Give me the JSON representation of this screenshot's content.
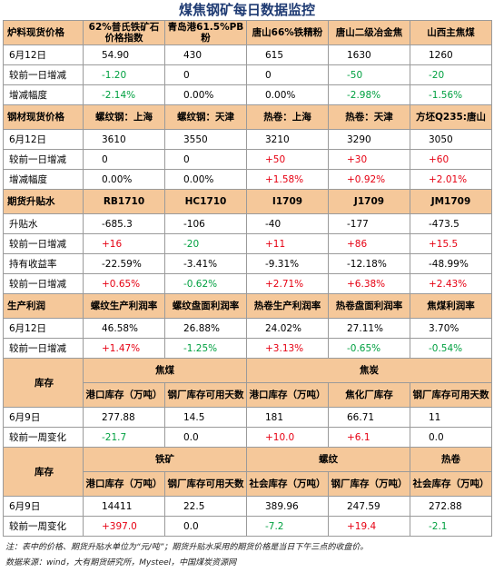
{
  "title": "煤焦钢矿每日数据监控",
  "colors": {
    "header_bg": "#f5c89a",
    "up": "#e60012",
    "down": "#00a040",
    "title": "#1f3b73"
  },
  "sec1": {
    "head": [
      "炉料现货价格",
      "62%普氏铁矿石价格指数",
      "青岛港61.5%PB粉",
      "唐山66%铁精粉",
      "唐山二级冶金焦",
      "山西主焦煤"
    ],
    "rows": [
      {
        "label": "6月12日",
        "cells": [
          {
            "t": "54.90",
            "c": ""
          },
          {
            "t": "430",
            "c": ""
          },
          {
            "t": "615",
            "c": ""
          },
          {
            "t": "1630",
            "c": ""
          },
          {
            "t": "1260",
            "c": ""
          }
        ]
      },
      {
        "label": "较前一日增减",
        "cells": [
          {
            "t": "-1.20",
            "c": "green"
          },
          {
            "t": "0",
            "c": ""
          },
          {
            "t": "0",
            "c": ""
          },
          {
            "t": "-50",
            "c": "green"
          },
          {
            "t": "-20",
            "c": "green"
          }
        ]
      },
      {
        "label": "增减幅度",
        "cells": [
          {
            "t": "-2.14%",
            "c": "green"
          },
          {
            "t": "0.00%",
            "c": ""
          },
          {
            "t": "0.00%",
            "c": ""
          },
          {
            "t": "-2.98%",
            "c": "green"
          },
          {
            "t": "-1.56%",
            "c": "green"
          }
        ]
      }
    ]
  },
  "sec2": {
    "head": [
      "钢材现货价格",
      "螺纹钢：上海",
      "螺纹钢：天津",
      "热卷：上海",
      "热卷：天津",
      "方坯Q235:唐山"
    ],
    "rows": [
      {
        "label": "6月12日",
        "cells": [
          {
            "t": "3610",
            "c": ""
          },
          {
            "t": "3550",
            "c": ""
          },
          {
            "t": "3210",
            "c": ""
          },
          {
            "t": "3290",
            "c": ""
          },
          {
            "t": "3050",
            "c": ""
          }
        ]
      },
      {
        "label": "较前一日增减",
        "cells": [
          {
            "t": "0",
            "c": ""
          },
          {
            "t": "0",
            "c": ""
          },
          {
            "t": "+50",
            "c": "red"
          },
          {
            "t": "+30",
            "c": "red"
          },
          {
            "t": "+60",
            "c": "red"
          }
        ]
      },
      {
        "label": "增减幅度",
        "cells": [
          {
            "t": "0.00%",
            "c": ""
          },
          {
            "t": "0.00%",
            "c": ""
          },
          {
            "t": "+1.58%",
            "c": "red"
          },
          {
            "t": "+0.92%",
            "c": "red"
          },
          {
            "t": "+2.01%",
            "c": "red"
          }
        ]
      }
    ]
  },
  "sec3": {
    "head": [
      "期货升贴水",
      "RB1710",
      "HC1710",
      "I1709",
      "J1709",
      "JM1709"
    ],
    "rows": [
      {
        "label": "升贴水",
        "cells": [
          {
            "t": "-685.3",
            "c": ""
          },
          {
            "t": "-106",
            "c": ""
          },
          {
            "t": "-40",
            "c": ""
          },
          {
            "t": "-177",
            "c": ""
          },
          {
            "t": "-473.5",
            "c": ""
          }
        ]
      },
      {
        "label": "较前一日增减",
        "cells": [
          {
            "t": "+16",
            "c": "red"
          },
          {
            "t": "-20",
            "c": "green"
          },
          {
            "t": "+11",
            "c": "red"
          },
          {
            "t": "+86",
            "c": "red"
          },
          {
            "t": "+15.5",
            "c": "red"
          }
        ]
      },
      {
        "label": "持有收益率",
        "cells": [
          {
            "t": "-22.59%",
            "c": ""
          },
          {
            "t": "-3.41%",
            "c": ""
          },
          {
            "t": "-9.31%",
            "c": ""
          },
          {
            "t": "-12.18%",
            "c": ""
          },
          {
            "t": "-48.99%",
            "c": ""
          }
        ]
      },
      {
        "label": "较前一日增减",
        "cells": [
          {
            "t": "+0.65%",
            "c": "red"
          },
          {
            "t": "-0.62%",
            "c": "green"
          },
          {
            "t": "+2.71%",
            "c": "red"
          },
          {
            "t": "+6.38%",
            "c": "red"
          },
          {
            "t": "+2.43%",
            "c": "red"
          }
        ]
      }
    ]
  },
  "sec4": {
    "head": [
      "生产利润",
      "螺纹生产利润率",
      "螺纹盘面利润率",
      "热卷生产利润率",
      "热卷盘面利润率",
      "焦煤利润率"
    ],
    "rows": [
      {
        "label": "6月12日",
        "cells": [
          {
            "t": "46.58%",
            "c": ""
          },
          {
            "t": "26.88%",
            "c": ""
          },
          {
            "t": "24.02%",
            "c": ""
          },
          {
            "t": "27.11%",
            "c": ""
          },
          {
            "t": "3.70%",
            "c": ""
          }
        ]
      },
      {
        "label": "较前一日增减",
        "cells": [
          {
            "t": "+1.47%",
            "c": "red"
          },
          {
            "t": "-1.25%",
            "c": "green"
          },
          {
            "t": "+3.13%",
            "c": "red"
          },
          {
            "t": "-0.65%",
            "c": "green"
          },
          {
            "t": "-0.54%",
            "c": "green"
          }
        ]
      }
    ]
  },
  "sec5": {
    "label": "库存",
    "groups": [
      "焦煤",
      "焦炭"
    ],
    "head": [
      "港口库存（万吨）",
      "钢厂库存可用天数",
      "港口库存（万吨）",
      "焦化厂库存",
      "钢厂库存可用天数"
    ],
    "rows": [
      {
        "label": "6月9日",
        "cells": [
          {
            "t": "277.88",
            "c": ""
          },
          {
            "t": "14.5",
            "c": ""
          },
          {
            "t": "181",
            "c": ""
          },
          {
            "t": "66.71",
            "c": ""
          },
          {
            "t": "11",
            "c": ""
          }
        ]
      },
      {
        "label": "较前一周变化",
        "cells": [
          {
            "t": "-21.7",
            "c": "green"
          },
          {
            "t": "0.0",
            "c": ""
          },
          {
            "t": "+10.0",
            "c": "red"
          },
          {
            "t": "+6.1",
            "c": "red"
          },
          {
            "t": "0.0",
            "c": ""
          }
        ]
      }
    ]
  },
  "sec6": {
    "label": "库存",
    "groups": [
      "铁矿",
      "螺纹",
      "热卷"
    ],
    "head": [
      "港口库存（万吨）",
      "钢厂库存可用天数",
      "社会库存（万吨）",
      "钢厂库存（万吨）",
      "社会库存（万吨）"
    ],
    "rows": [
      {
        "label": "6月9日",
        "cells": [
          {
            "t": "14411",
            "c": ""
          },
          {
            "t": "22.5",
            "c": ""
          },
          {
            "t": "389.96",
            "c": ""
          },
          {
            "t": "247.59",
            "c": ""
          },
          {
            "t": "272.88",
            "c": ""
          }
        ]
      },
      {
        "label": "较前一周变化",
        "cells": [
          {
            "t": "+397.0",
            "c": "red"
          },
          {
            "t": "0.0",
            "c": ""
          },
          {
            "t": "-7.2",
            "c": "green"
          },
          {
            "t": "+19.4",
            "c": "red"
          },
          {
            "t": "-2.1",
            "c": "green"
          }
        ]
      }
    ]
  },
  "note": "注：表中的价格、期货升贴水单位为“元/吨”；期货升贴水采用的期货价格是当日下午三点的收盘价。",
  "source": "数据来源：wind，大有期货研究所，Mysteel，中国煤炭资源网"
}
